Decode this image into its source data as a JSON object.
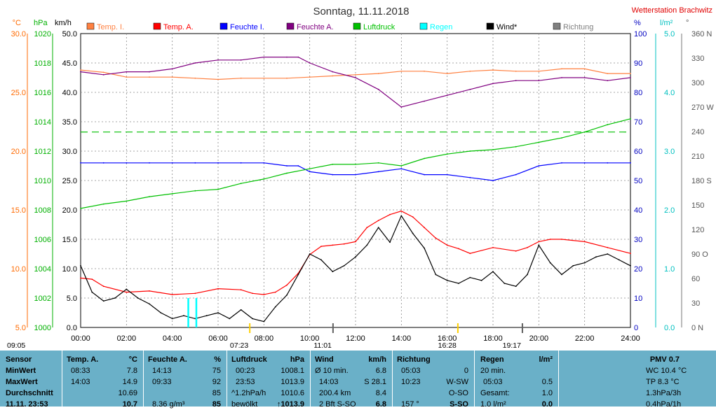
{
  "title": "Sonntag, 11.11.2018",
  "station": "Wetterstation Brachwitz",
  "axes": {
    "temp": {
      "unit": "°C",
      "ticks": [
        "30.0",
        "25.0",
        "20.0",
        "15.0",
        "10.0",
        "5.0"
      ],
      "color": "#ff6a00"
    },
    "press": {
      "unit": "hPa",
      "ticks": [
        "1020",
        "1018",
        "1016",
        "1014",
        "1012",
        "1010",
        "1008",
        "1006",
        "1004",
        "1002",
        "1000"
      ],
      "color": "#00b000"
    },
    "wind": {
      "unit": "km/h",
      "ticks": [
        "50.0",
        "45.0",
        "40.0",
        "35.0",
        "30.0",
        "25.0",
        "20.0",
        "15.0",
        "10.0",
        "5.0",
        "0.0"
      ]
    },
    "hum": {
      "unit": "%",
      "ticks": [
        "100",
        "90",
        "80",
        "70",
        "60",
        "50",
        "40",
        "30",
        "20",
        "10",
        "0"
      ],
      "color": "#0000c0"
    },
    "rain": {
      "unit": "l/m²",
      "ticks": [
        "5.0",
        "4.0",
        "3.0",
        "2.0",
        "1.0",
        "0.0"
      ],
      "color": "#00c0c0"
    },
    "dir": {
      "unit": "°",
      "ticks": [
        "360 N",
        "330",
        "300",
        "270 W",
        "240",
        "210",
        "180 S",
        "150",
        "120",
        "90 O",
        "60",
        "30",
        "0 N"
      ]
    },
    "x_ticks": [
      "00:00",
      "02:00",
      "04:00",
      "06:00",
      "08:00",
      "10:00",
      "12:00",
      "14:00",
      "16:00",
      "18:00",
      "20:00",
      "22:00",
      "24:00"
    ]
  },
  "legend": [
    {
      "label": "Temp. I.",
      "color": "#ff8040"
    },
    {
      "label": "Temp. A.",
      "color": "#ff0000"
    },
    {
      "label": "Feuchte I.",
      "color": "#0000ff"
    },
    {
      "label": "Feuchte A.",
      "color": "#800080"
    },
    {
      "label": "Luftdruck",
      "color": "#00c000"
    },
    {
      "label": "Regen",
      "color": "#00ffff"
    },
    {
      "label": "Wind*",
      "color": "#000000"
    },
    {
      "label": "Richtung",
      "color": "#808080"
    }
  ],
  "events": {
    "sunrise": "07:23",
    "sunset": "16:28",
    "moonrise": "11:01",
    "moonset": "19:17",
    "start": "09:05"
  },
  "chart_data": {
    "type": "line",
    "title": "Sonntag, 11.11.2018",
    "x_unit": "hours",
    "xlim": [
      0,
      24
    ],
    "series": [
      {
        "name": "Temp. I.",
        "axis": "°C",
        "color": "#ff8040",
        "x": [
          0,
          1,
          2,
          3,
          4,
          5,
          6,
          7,
          8,
          9,
          10,
          11,
          12,
          13,
          14,
          15,
          16,
          17,
          18,
          19,
          20,
          21,
          22,
          23,
          24
        ],
        "values": [
          26.9,
          26.7,
          26.3,
          26.3,
          26.3,
          26.2,
          26.1,
          26.2,
          26.2,
          26.2,
          26.3,
          26.4,
          26.5,
          26.6,
          26.8,
          26.8,
          26.6,
          26.8,
          26.9,
          26.8,
          26.8,
          27.0,
          27.0,
          26.6,
          26.6
        ]
      },
      {
        "name": "Temp. A.",
        "axis": "°C",
        "color": "#ff0000",
        "x": [
          0,
          0.5,
          1,
          2,
          3,
          4,
          5,
          6,
          7,
          7.5,
          8,
          8.5,
          9,
          9.5,
          10,
          10.5,
          11,
          11.5,
          12,
          12.5,
          13,
          13.5,
          14,
          14.5,
          15,
          15.5,
          16,
          16.5,
          17,
          18,
          19,
          19.5,
          20,
          20.5,
          21,
          22,
          23,
          24
        ],
        "values": [
          9.2,
          9.1,
          8.5,
          8.0,
          8.1,
          7.8,
          7.9,
          8.3,
          8.2,
          7.9,
          7.8,
          8.0,
          8.6,
          9.6,
          11.2,
          11.9,
          12.0,
          12.1,
          12.3,
          13.5,
          14.1,
          14.6,
          14.9,
          14.4,
          13.5,
          12.6,
          12.0,
          11.7,
          11.3,
          11.8,
          11.5,
          11.8,
          12.3,
          12.5,
          12.5,
          12.3,
          11.8,
          11.3
        ]
      },
      {
        "name": "Feuchte I.",
        "axis": "%",
        "color": "#0000ff",
        "x": [
          0,
          1,
          2,
          3,
          4,
          5,
          6,
          7,
          8,
          9,
          9.5,
          10,
          11,
          12,
          13,
          14,
          15,
          16,
          17,
          18,
          19,
          20,
          21,
          22,
          23,
          24
        ],
        "values": [
          56,
          56,
          56,
          56,
          56,
          56,
          56,
          56,
          56,
          55,
          55,
          53,
          52,
          52,
          53,
          54,
          52,
          52,
          51,
          50,
          52,
          55,
          56,
          56,
          56,
          56
        ]
      },
      {
        "name": "Feuchte A.",
        "axis": "%",
        "color": "#800080",
        "x": [
          0,
          1,
          2,
          3,
          4,
          5,
          6,
          7,
          8,
          9,
          9.5,
          10,
          11,
          12,
          13,
          14,
          15,
          16,
          17,
          18,
          19,
          20,
          21,
          22,
          23,
          24
        ],
        "values": [
          87,
          86,
          87,
          87,
          88,
          90,
          91,
          91,
          92,
          92,
          92,
          90,
          87,
          85,
          81,
          75,
          77,
          79,
          81,
          83,
          84,
          84,
          85,
          85,
          84,
          85
        ]
      },
      {
        "name": "Luftdruck",
        "axis": "hPa",
        "color": "#00c000",
        "x": [
          0,
          1,
          2,
          3,
          4,
          5,
          6,
          7,
          8,
          9,
          10,
          11,
          12,
          13,
          14,
          15,
          16,
          17,
          18,
          19,
          20,
          21,
          22,
          23,
          24
        ],
        "values": [
          1008.1,
          1008.4,
          1008.6,
          1008.9,
          1009.1,
          1009.3,
          1009.4,
          1009.8,
          1010.1,
          1010.5,
          1010.8,
          1011.1,
          1011.1,
          1011.2,
          1011.0,
          1011.5,
          1011.8,
          1012.0,
          1012.1,
          1012.3,
          1012.6,
          1012.9,
          1013.3,
          1013.8,
          1014.2
        ]
      },
      {
        "name": "Wind*",
        "axis": "km/h",
        "color": "#000000",
        "x": [
          0,
          0.5,
          1,
          1.5,
          2,
          2.5,
          3,
          3.5,
          4,
          4.5,
          5,
          5.5,
          6,
          6.5,
          7,
          7.5,
          8,
          8.5,
          9,
          9.5,
          10,
          10.5,
          11,
          11.5,
          12,
          12.5,
          13,
          13.5,
          14,
          14.5,
          15,
          15.5,
          16,
          16.5,
          17,
          17.5,
          18,
          18.5,
          19,
          19.5,
          20,
          20.5,
          21,
          21.5,
          22,
          22.5,
          23,
          23.5,
          24
        ],
        "values": [
          10.5,
          6.0,
          4.5,
          5.0,
          6.5,
          5.0,
          4.0,
          2.5,
          1.5,
          2.0,
          1.5,
          2.0,
          2.5,
          1.5,
          3.0,
          1.5,
          1.0,
          3.5,
          5.5,
          9.0,
          12.5,
          11.5,
          9.5,
          10.5,
          12.0,
          14.0,
          17.0,
          14.5,
          19.0,
          16.0,
          13.5,
          9.0,
          8.0,
          7.5,
          8.5,
          8.0,
          9.5,
          7.5,
          7.0,
          9.0,
          14.0,
          11.0,
          9.0,
          10.5,
          11.0,
          12.0,
          12.5,
          11.5,
          10.5
        ]
      },
      {
        "name": "Regen",
        "axis": "l/m²",
        "color": "#00ffff",
        "bars": [
          {
            "x": 4.7,
            "value": 0.5
          },
          {
            "x": 5.05,
            "value": 0.5
          }
        ]
      }
    ],
    "reference_line": {
      "axis": "hPa",
      "value": 1013.3,
      "color": "#00c000",
      "style": "dashed"
    },
    "grid": true
  },
  "table": {
    "sensor": {
      "header": "Sensor",
      "rows": [
        "MinWert",
        "MaxWert",
        "Durchschnitt",
        "11.11. 23:53"
      ]
    },
    "temp": {
      "header": "Temp. A.",
      "unit": "°C",
      "rows": [
        [
          "08:33",
          "7.8"
        ],
        [
          "14:03",
          "14.9"
        ],
        [
          "",
          "10.69"
        ],
        [
          "",
          "10.7"
        ]
      ]
    },
    "hum": {
      "header": "Feuchte A.",
      "unit": "%",
      "rows": [
        [
          "14:13",
          "75"
        ],
        [
          "09:33",
          "92"
        ],
        [
          "",
          "85"
        ],
        [
          "8.36 g/m³",
          "85"
        ]
      ]
    },
    "press": {
      "header": "Luftdruck",
      "unit": "hPa",
      "rows": [
        [
          "00:23",
          "1008.1"
        ],
        [
          "23:53",
          "1013.9"
        ],
        [
          "^1.2hPa/h",
          "1010.6"
        ],
        [
          "bewölkt",
          "↑1013.9"
        ]
      ]
    },
    "wind": {
      "header": "Wind",
      "unit": "km/h",
      "rows": [
        [
          "Ø 10 min.",
          "6.8"
        ],
        [
          "14:03",
          "S 28.1"
        ],
        [
          "200.4 km",
          "8.4"
        ],
        [
          "2 Bft S-SO",
          "6.8"
        ]
      ]
    },
    "dir": {
      "header": "Richtung",
      "rows": [
        [
          "05:03",
          "0"
        ],
        [
          "10:23",
          "W-SW"
        ],
        [
          "",
          "O-SO"
        ],
        [
          "157 °",
          "S-SO"
        ]
      ]
    },
    "rain": {
      "header": "Regen",
      "unit": "l/m²",
      "rows": [
        [
          "20 min.",
          ""
        ],
        [
          "05:03",
          "0.5"
        ],
        [
          "Gesamt:",
          "1.0"
        ],
        [
          "1.0 l/m²",
          "0.0"
        ]
      ]
    },
    "pmv": {
      "header": "PMV 0.7",
      "rows": [
        "WC 10.4 °C",
        "TP 8.3 °C",
        "1.3hPa/3h",
        "0.4hPa/1h"
      ]
    }
  }
}
